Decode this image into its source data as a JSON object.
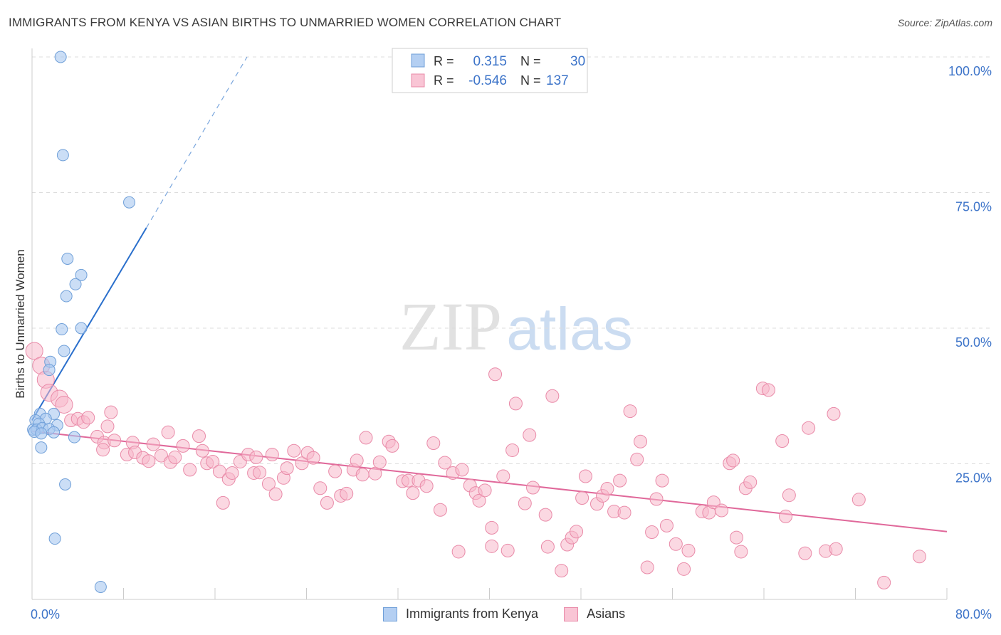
{
  "header": {
    "title": "IMMIGRANTS FROM KENYA VS ASIAN BIRTHS TO UNMARRIED WOMEN CORRELATION CHART",
    "source": "Source: ZipAtlas.com"
  },
  "watermark": {
    "zip": "ZIP",
    "atlas": "atlas"
  },
  "colors": {
    "blue_fill": "#a9c8f0",
    "blue_stroke": "#6f9fd8",
    "blue_line": "#2a6fcc",
    "pink_fill": "#f7b8cb",
    "pink_stroke": "#e98aa8",
    "pink_line": "#e0689a",
    "axis_text": "#3d74c9",
    "grid": "#dcdcdc"
  },
  "stats_legend": [
    {
      "r_label": "R =",
      "r_value": "0.315",
      "n_label": "N =",
      "n_value": "30"
    },
    {
      "r_label": "R =",
      "r_value": "-0.546",
      "n_label": "N =",
      "n_value": "137"
    }
  ],
  "chart_data": {
    "type": "scatter",
    "title": "IMMIGRANTS FROM KENYA VS ASIAN BIRTHS TO UNMARRIED WOMEN CORRELATION CHART",
    "xlabel": "",
    "ylabel": "Births to Unmarried Women",
    "xlim": [
      0,
      80
    ],
    "ylim": [
      0,
      100
    ],
    "x_tick_labels": [
      "0.0%",
      "80.0%"
    ],
    "y_tick_labels": [
      "100.0%",
      "75.0%",
      "50.0%",
      "25.0%"
    ],
    "y_ticks": [
      100,
      75,
      50,
      25
    ],
    "grid": "dashed horizontal",
    "legend_position": "bottom",
    "series": [
      {
        "name": "Immigrants from Kenya",
        "color": "blue",
        "r": 0.315,
        "n": 30,
        "trend": {
          "solid": [
            [
              0.0,
              33.0
            ],
            [
              10.0,
              68.5
            ]
          ],
          "dashed": [
            [
              10.0,
              68.5
            ],
            [
              18.8,
              100.0
            ]
          ]
        },
        "points": [
          [
            2.5,
            100.0
          ],
          [
            2.7,
            81.9
          ],
          [
            8.5,
            73.2
          ],
          [
            3.1,
            62.8
          ],
          [
            4.3,
            59.8
          ],
          [
            3.8,
            58.1
          ],
          [
            3.0,
            55.9
          ],
          [
            2.6,
            49.8
          ],
          [
            4.3,
            50.0
          ],
          [
            2.8,
            45.8
          ],
          [
            1.6,
            43.8
          ],
          [
            1.5,
            42.3
          ],
          [
            1.9,
            34.2
          ],
          [
            0.7,
            34.2
          ],
          [
            0.3,
            33.0
          ],
          [
            1.2,
            33.3
          ],
          [
            0.6,
            32.4
          ],
          [
            2.2,
            32.1
          ],
          [
            0.1,
            31.3
          ],
          [
            0.4,
            31.3
          ],
          [
            0.9,
            31.6
          ],
          [
            1.5,
            31.4
          ],
          [
            1.9,
            30.8
          ],
          [
            0.2,
            30.9
          ],
          [
            0.8,
            30.6
          ],
          [
            0.8,
            28.0
          ],
          [
            3.7,
            29.9
          ],
          [
            2.9,
            21.2
          ],
          [
            2.0,
            11.2
          ],
          [
            6.0,
            2.3
          ]
        ]
      },
      {
        "name": "Asians",
        "color": "pink",
        "r": -0.546,
        "n": 137,
        "trend": {
          "solid": [
            [
              0.0,
              31.0
            ],
            [
              80.0,
              12.5
            ]
          ]
        },
        "points": [
          [
            0.2,
            45.8
          ],
          [
            0.8,
            43.1
          ],
          [
            1.2,
            40.5
          ],
          [
            1.5,
            38.1
          ],
          [
            2.4,
            37.0
          ],
          [
            2.8,
            35.9
          ],
          [
            3.4,
            33.0
          ],
          [
            4.0,
            33.3
          ],
          [
            4.5,
            32.7
          ],
          [
            4.9,
            33.5
          ],
          [
            6.9,
            34.5
          ],
          [
            5.7,
            30.0
          ],
          [
            6.3,
            28.9
          ],
          [
            6.2,
            27.6
          ],
          [
            6.6,
            31.9
          ],
          [
            7.2,
            29.3
          ],
          [
            8.8,
            28.9
          ],
          [
            8.3,
            26.7
          ],
          [
            9.0,
            27.1
          ],
          [
            9.7,
            26.1
          ],
          [
            10.2,
            25.5
          ],
          [
            10.6,
            28.6
          ],
          [
            11.3,
            26.5
          ],
          [
            12.1,
            25.3
          ],
          [
            12.5,
            26.2
          ],
          [
            11.9,
            30.8
          ],
          [
            13.2,
            28.3
          ],
          [
            13.8,
            23.9
          ],
          [
            14.6,
            30.1
          ],
          [
            14.9,
            27.4
          ],
          [
            15.3,
            25.1
          ],
          [
            15.8,
            25.4
          ],
          [
            16.4,
            23.6
          ],
          [
            16.7,
            17.8
          ],
          [
            17.2,
            22.2
          ],
          [
            17.5,
            23.3
          ],
          [
            18.2,
            25.4
          ],
          [
            18.9,
            26.7
          ],
          [
            19.4,
            23.3
          ],
          [
            19.6,
            26.2
          ],
          [
            19.9,
            23.4
          ],
          [
            20.7,
            21.3
          ],
          [
            21.0,
            26.7
          ],
          [
            21.3,
            19.4
          ],
          [
            22.0,
            22.4
          ],
          [
            22.3,
            24.2
          ],
          [
            22.9,
            27.4
          ],
          [
            23.6,
            25.1
          ],
          [
            24.1,
            27.0
          ],
          [
            24.6,
            26.1
          ],
          [
            25.2,
            20.5
          ],
          [
            25.8,
            17.8
          ],
          [
            26.5,
            23.6
          ],
          [
            27.0,
            19.1
          ],
          [
            27.5,
            19.5
          ],
          [
            28.1,
            23.9
          ],
          [
            28.4,
            25.6
          ],
          [
            28.9,
            23.0
          ],
          [
            29.2,
            29.8
          ],
          [
            30.0,
            23.2
          ],
          [
            30.4,
            25.3
          ],
          [
            31.2,
            29.1
          ],
          [
            31.5,
            28.3
          ],
          [
            32.4,
            21.8
          ],
          [
            32.9,
            21.9
          ],
          [
            33.3,
            19.6
          ],
          [
            33.8,
            21.9
          ],
          [
            34.5,
            20.9
          ],
          [
            35.1,
            28.8
          ],
          [
            35.7,
            16.5
          ],
          [
            36.1,
            25.2
          ],
          [
            36.8,
            23.3
          ],
          [
            37.3,
            8.8
          ],
          [
            37.6,
            23.9
          ],
          [
            38.3,
            21.0
          ],
          [
            38.8,
            19.6
          ],
          [
            39.1,
            18.2
          ],
          [
            39.6,
            20.1
          ],
          [
            40.2,
            9.8
          ],
          [
            40.2,
            13.2
          ],
          [
            40.5,
            41.5
          ],
          [
            41.2,
            22.7
          ],
          [
            41.6,
            9.0
          ],
          [
            42.0,
            27.5
          ],
          [
            42.3,
            36.1
          ],
          [
            43.1,
            17.7
          ],
          [
            43.5,
            30.3
          ],
          [
            43.8,
            20.6
          ],
          [
            44.9,
            15.6
          ],
          [
            45.1,
            9.7
          ],
          [
            45.5,
            37.5
          ],
          [
            46.3,
            5.3
          ],
          [
            46.8,
            10.1
          ],
          [
            47.2,
            11.4
          ],
          [
            47.6,
            12.5
          ],
          [
            48.1,
            18.7
          ],
          [
            48.4,
            22.7
          ],
          [
            49.4,
            17.6
          ],
          [
            49.9,
            19.1
          ],
          [
            50.3,
            20.4
          ],
          [
            50.9,
            16.2
          ],
          [
            51.4,
            21.9
          ],
          [
            51.8,
            16.0
          ],
          [
            52.3,
            34.7
          ],
          [
            52.9,
            25.8
          ],
          [
            53.2,
            29.1
          ],
          [
            53.8,
            5.9
          ],
          [
            54.2,
            12.4
          ],
          [
            54.6,
            18.5
          ],
          [
            55.1,
            21.9
          ],
          [
            55.5,
            13.6
          ],
          [
            56.3,
            10.2
          ],
          [
            57.0,
            5.6
          ],
          [
            57.4,
            9.0
          ],
          [
            58.6,
            16.2
          ],
          [
            59.2,
            16.0
          ],
          [
            59.6,
            17.9
          ],
          [
            60.3,
            16.4
          ],
          [
            61.0,
            25.1
          ],
          [
            61.3,
            25.6
          ],
          [
            61.6,
            11.4
          ],
          [
            62.0,
            8.8
          ],
          [
            62.4,
            20.5
          ],
          [
            62.8,
            21.6
          ],
          [
            63.9,
            38.9
          ],
          [
            64.4,
            38.6
          ],
          [
            65.6,
            29.2
          ],
          [
            65.9,
            15.3
          ],
          [
            66.2,
            19.2
          ],
          [
            67.6,
            8.5
          ],
          [
            67.9,
            31.6
          ],
          [
            69.4,
            8.9
          ],
          [
            70.1,
            34.2
          ],
          [
            70.3,
            9.3
          ],
          [
            72.3,
            18.4
          ],
          [
            74.5,
            3.1
          ],
          [
            77.6,
            7.9
          ]
        ]
      }
    ]
  },
  "bottom_legend": [
    {
      "label": "Immigrants from Kenya",
      "color": "blue"
    },
    {
      "label": "Asians",
      "color": "pink"
    }
  ]
}
